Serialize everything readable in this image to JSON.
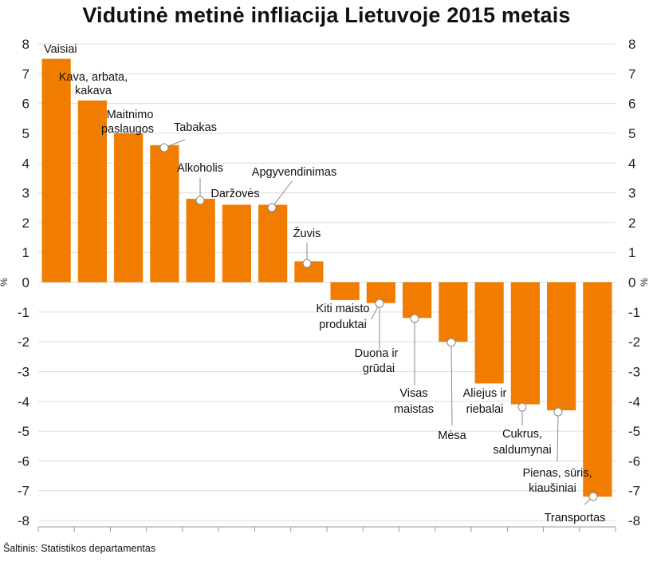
{
  "title": "Vidutinė metinė infliacija Lietuvoje 2015 metais",
  "source": "Šaltinis: Statistikos departamentas",
  "chart_data": {
    "type": "bar",
    "title": "Vidutinė metinė infliacija Lietuvoje 2015 metais",
    "ylabel": "%",
    "ylim": [
      -8,
      8
    ],
    "yticks": [
      "8",
      "7",
      "6",
      "5",
      "4",
      "3",
      "2",
      "1",
      "0",
      "-1",
      "-2",
      "-3",
      "-4",
      "-5",
      "-6",
      "-7",
      "-8"
    ],
    "grid": true,
    "bar_color": "#f07d00",
    "categories": [
      "Vaisiai",
      "Kava, arbata, kakava",
      "Maitnimo paslaugos",
      "Tabakas",
      "Alkoholis",
      "Daržovės",
      "Apgyvendinimas",
      "Žuvis",
      "Kiti maisto produktai",
      "Duona ir grūdai",
      "Visas maistas",
      "Mėsa",
      "Aliejus ir riebalai",
      "Cukrus, saldumynai",
      "Pienas, sūris, kiaušiniai",
      "Transportas"
    ],
    "values": [
      7.5,
      6.1,
      5.0,
      4.6,
      2.8,
      2.6,
      2.6,
      0.7,
      -0.6,
      -0.7,
      -1.2,
      -2.0,
      -3.4,
      -4.1,
      -4.3,
      -7.2
    ]
  }
}
